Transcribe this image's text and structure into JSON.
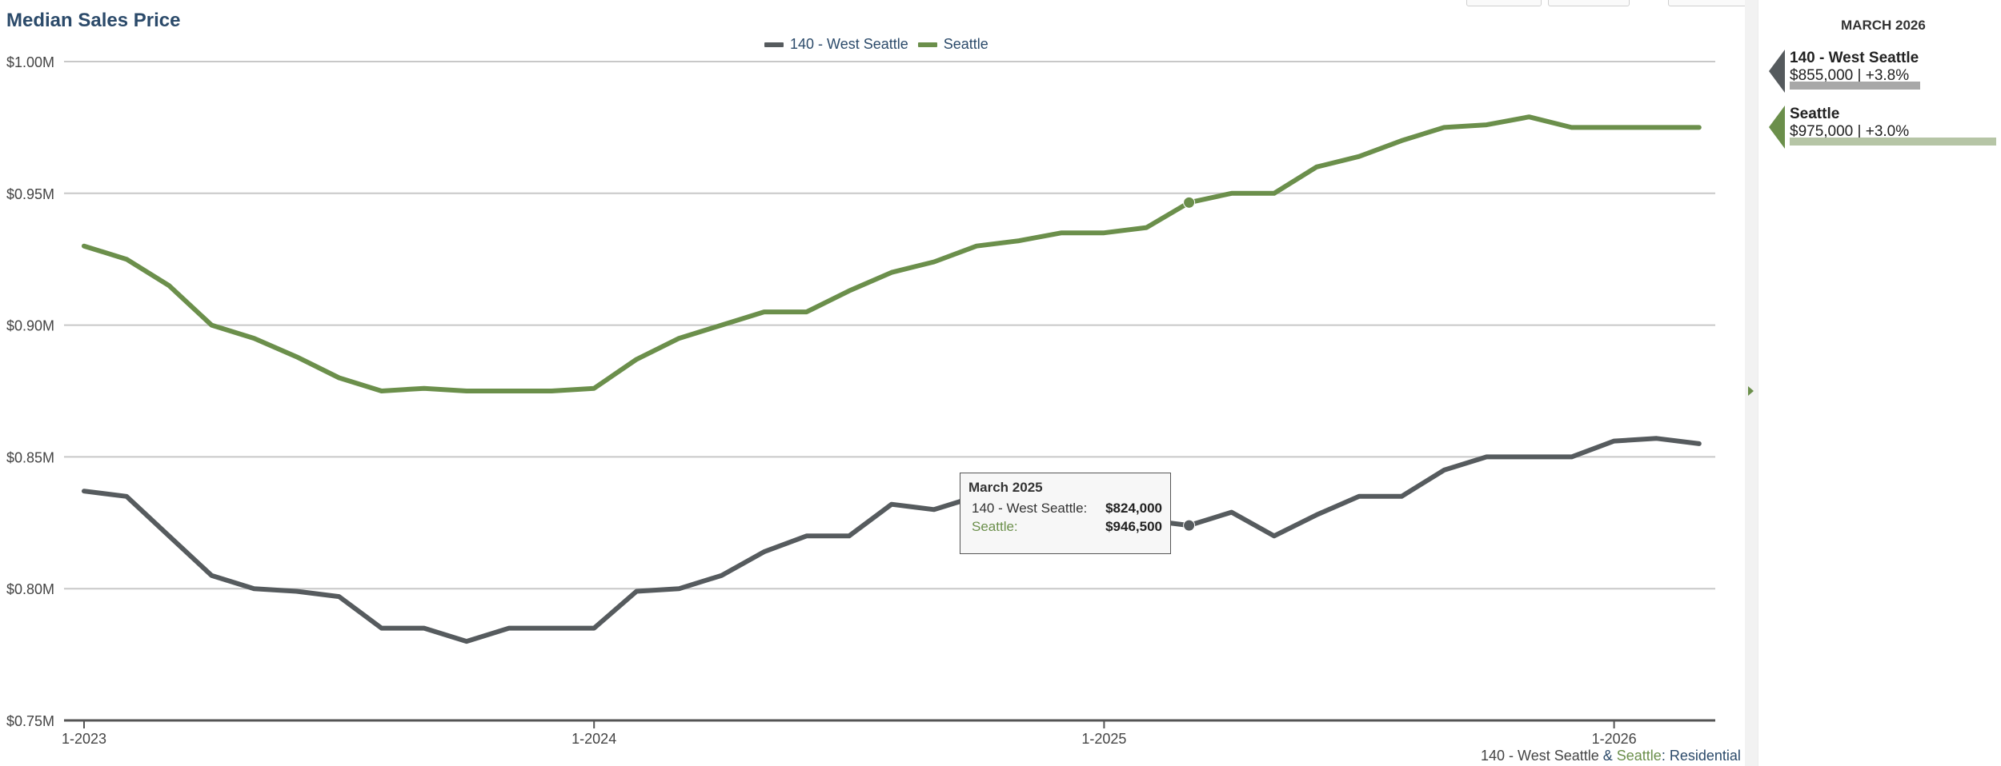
{
  "title": "Median Sales Price",
  "legend": [
    {
      "name": "140 - West Seattle",
      "color": "#565b5e"
    },
    {
      "name": "Seattle",
      "color": "#6b8f4b"
    }
  ],
  "side_panel": {
    "period": "MARCH 2026",
    "items": [
      {
        "name": "140 - West Seattle",
        "value": "$855,000 | +3.8%",
        "color": "#565b5e",
        "bar_color": "#a8a8a8",
        "bar_level": 0.63
      },
      {
        "name": "Seattle",
        "value": "$975,000 | +3.0%",
        "color": "#6b8f4b",
        "bar_color": "#b6c5a6",
        "bar_level": 1.0
      }
    ]
  },
  "tooltip": {
    "title": "March 2025",
    "rows": [
      {
        "label": "140 - West Seattle:",
        "value": "$824,000",
        "color": "#333333"
      },
      {
        "label": "Seattle:",
        "value": "$946,500",
        "color": "#6b8f4b"
      }
    ]
  },
  "source_note": {
    "part1": "140 - West Seattle",
    "sep1": " & ",
    "part2": "Seattle",
    "sep2": ": ",
    "part3": "Residential"
  },
  "chart_data": {
    "type": "line",
    "title": "Median Sales Price",
    "x": [
      "2023-01",
      "2023-02",
      "2023-03",
      "2023-04",
      "2023-05",
      "2023-06",
      "2023-07",
      "2023-08",
      "2023-09",
      "2023-10",
      "2023-11",
      "2023-12",
      "2024-01",
      "2024-02",
      "2024-03",
      "2024-04",
      "2024-05",
      "2024-06",
      "2024-07",
      "2024-08",
      "2024-09",
      "2024-10",
      "2024-11",
      "2024-12",
      "2025-01",
      "2025-02",
      "2025-03",
      "2025-04",
      "2025-05",
      "2025-06",
      "2025-07",
      "2025-08",
      "2025-09",
      "2025-10",
      "2025-11",
      "2025-12",
      "2026-01",
      "2026-02",
      "2026-03"
    ],
    "x_tick_labels": [
      "1-2023",
      "1-2024",
      "1-2025",
      "1-2026"
    ],
    "x_tick_indices": [
      0,
      12,
      24,
      36
    ],
    "y_tick_labels": [
      "$1.00M",
      "$0.95M",
      "$0.90M",
      "$0.85M",
      "$0.80M",
      "$0.75M"
    ],
    "ylim": [
      0.75,
      1.0
    ],
    "grid": true,
    "legend_position": "top-center",
    "series": [
      {
        "name": "140 - West Seattle",
        "color": "#565b5e",
        "values": [
          0.837,
          0.835,
          0.82,
          0.805,
          0.8,
          0.799,
          0.797,
          0.785,
          0.785,
          0.78,
          0.785,
          0.785,
          0.785,
          0.799,
          0.8,
          0.805,
          0.814,
          0.82,
          0.82,
          0.832,
          0.83,
          0.835,
          0.835,
          0.83,
          0.828,
          0.826,
          0.824,
          0.829,
          0.82,
          0.828,
          0.835,
          0.835,
          0.845,
          0.85,
          0.85,
          0.85,
          0.856,
          0.857,
          0.855
        ]
      },
      {
        "name": "Seattle",
        "color": "#6b8f4b",
        "values": [
          0.93,
          0.925,
          0.915,
          0.9,
          0.895,
          0.888,
          0.88,
          0.875,
          0.876,
          0.875,
          0.875,
          0.875,
          0.876,
          0.887,
          0.895,
          0.9,
          0.905,
          0.905,
          0.913,
          0.92,
          0.924,
          0.93,
          0.932,
          0.935,
          0.935,
          0.937,
          0.9465,
          0.95,
          0.95,
          0.96,
          0.964,
          0.97,
          0.975,
          0.976,
          0.979,
          0.975,
          0.975,
          0.975,
          0.975
        ]
      }
    ],
    "highlight_index": 26
  }
}
